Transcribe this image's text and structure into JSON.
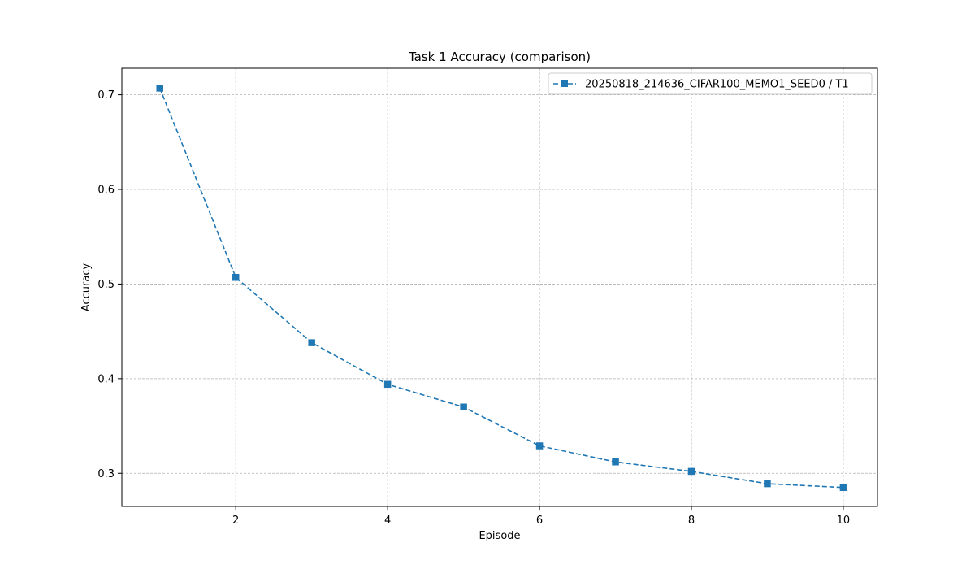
{
  "chart_data": {
    "type": "line",
    "title": "Task 1 Accuracy (comparison)",
    "xlabel": "Episode",
    "ylabel": "Accuracy",
    "xlim": [
      0.5,
      10.45
    ],
    "ylim": [
      0.265,
      0.728
    ],
    "xticks": [
      2,
      4,
      6,
      8,
      10
    ],
    "yticks": [
      0.3,
      0.4,
      0.5,
      0.6,
      0.7
    ],
    "xtick_labels": [
      "2",
      "4",
      "6",
      "8",
      "10"
    ],
    "ytick_labels": [
      "0.3",
      "0.4",
      "0.5",
      "0.6",
      "0.7"
    ],
    "grid": true,
    "grid_style": "dashed",
    "legend_position": "top-right",
    "x": [
      1,
      2,
      3,
      4,
      5,
      6,
      7,
      8,
      9,
      10
    ],
    "series": [
      {
        "name": "20250818_214636_CIFAR100_MEMO1_SEED0 / T1",
        "values": [
          0.707,
          0.507,
          0.438,
          0.394,
          0.37,
          0.329,
          0.312,
          0.302,
          0.289,
          0.285
        ],
        "color": "#1f77b4",
        "line_style": "dashed",
        "marker": "square"
      }
    ]
  }
}
